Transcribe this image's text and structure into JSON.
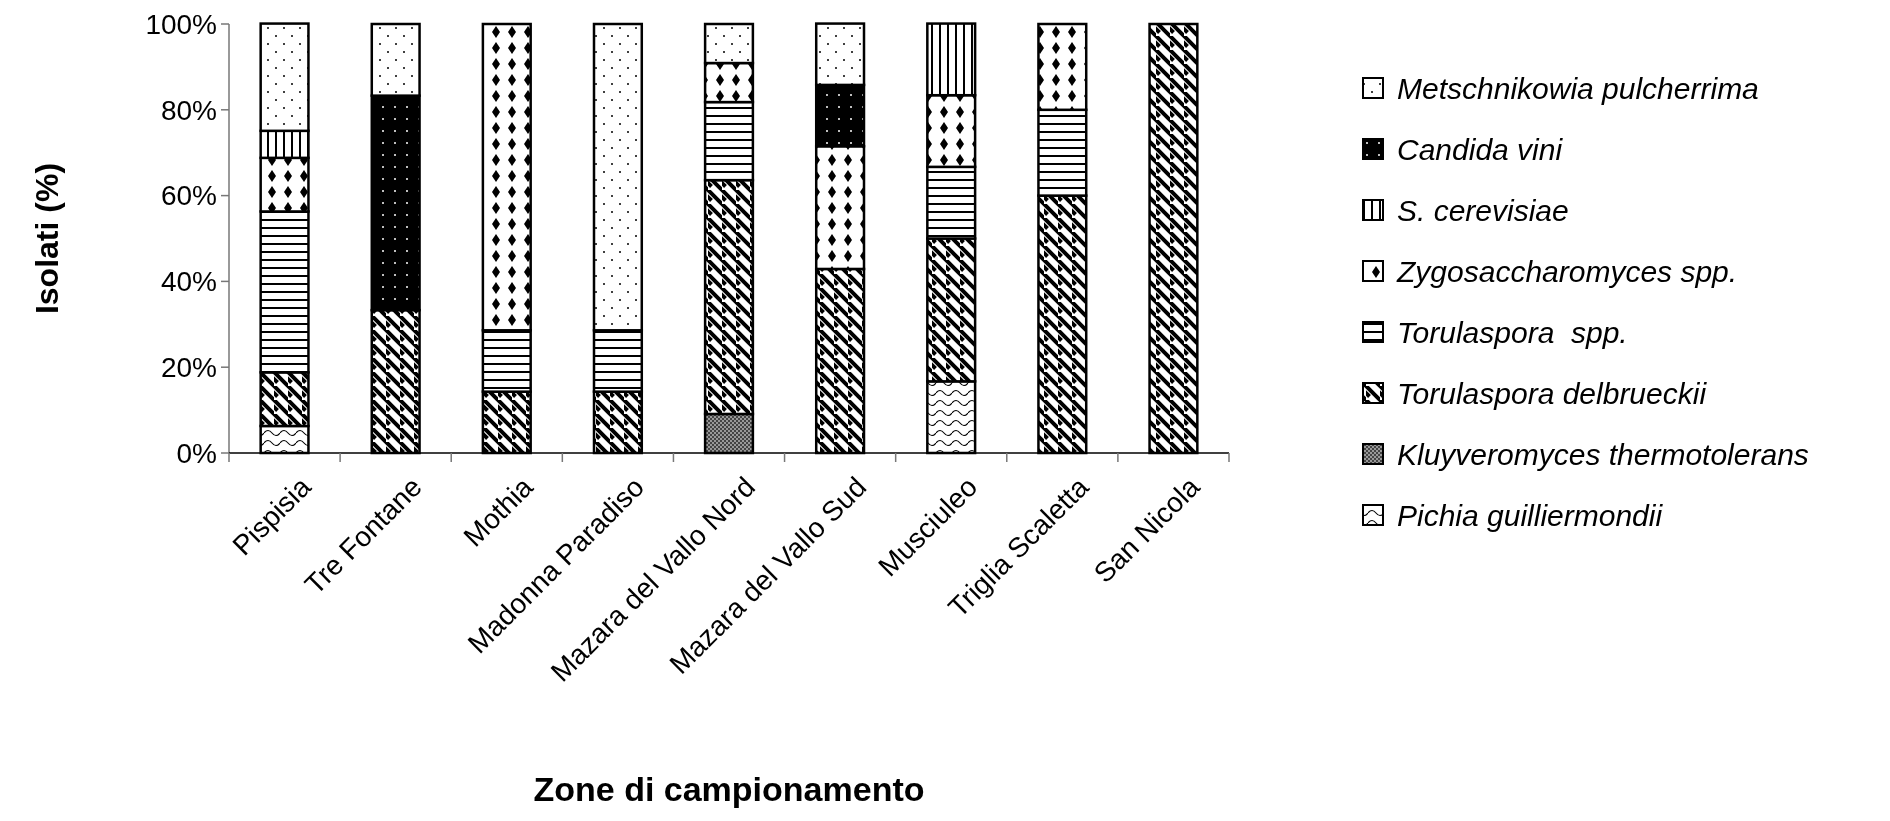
{
  "chart_data": {
    "type": "bar",
    "stacked": true,
    "xlabel": "Zone di campionamento",
    "ylabel": "Isolati (%)",
    "categories": [
      "Pispisia",
      "Tre Fontane",
      "Mothia",
      "Madonna Paradiso",
      "Mazara del Vallo Nord",
      "Mazara del Vallo Sud",
      "Musciuleo",
      "Triglia Scaletta",
      "San Nicola"
    ],
    "ylim": [
      0,
      100
    ],
    "yticks": [
      {
        "value": 0,
        "label": "0%"
      },
      {
        "value": 20,
        "label": "20%"
      },
      {
        "value": 40,
        "label": "40%"
      },
      {
        "value": 60,
        "label": "60%"
      },
      {
        "value": 80,
        "label": "80%"
      },
      {
        "value": 100,
        "label": "100%"
      }
    ],
    "legend": "right",
    "series": [
      {
        "name": "Pichia guilliermondii",
        "values": [
          6.3,
          0,
          0,
          0,
          0,
          0,
          16.7,
          0,
          0
        ]
      },
      {
        "name": "Kluyveromyces thermotolerans",
        "values": [
          0,
          0,
          0,
          0,
          9.1,
          0,
          0,
          0,
          0
        ]
      },
      {
        "name": "Torulaspora delbrueckii",
        "values": [
          12.5,
          33.3,
          14.3,
          14.3,
          54.5,
          42.9,
          33.3,
          60,
          100
        ]
      },
      {
        "name": "Torulaspora  spp.",
        "values": [
          37.5,
          0,
          14.3,
          14.3,
          18.2,
          0,
          16.7,
          20,
          0
        ]
      },
      {
        "name": "Zygosaccharomyces spp.",
        "values": [
          12.5,
          0,
          71.4,
          0,
          9.1,
          28.6,
          16.7,
          20,
          0
        ]
      },
      {
        "name": "S. cerevisiae",
        "values": [
          6.3,
          0,
          0,
          0,
          0,
          0,
          16.7,
          0,
          0
        ]
      },
      {
        "name": "Candida vini",
        "values": [
          0,
          50,
          0,
          0,
          0,
          14.3,
          0,
          0,
          0
        ]
      },
      {
        "name": "Metschnikowia pulcherrima",
        "values": [
          25,
          16.7,
          0,
          71.4,
          9.1,
          14.3,
          0,
          0,
          0
        ]
      }
    ]
  }
}
